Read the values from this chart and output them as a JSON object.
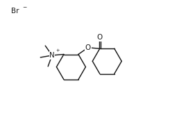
{
  "background_color": "#ffffff",
  "line_color": "#1a1a1a",
  "line_width": 1.05,
  "font_size": 7.5,
  "fig_width": 2.58,
  "fig_height": 1.98,
  "dpi": 100,
  "br_text": "Br",
  "minus_text": "−",
  "plus_text": "+",
  "N_text": "N",
  "O_text": "O"
}
